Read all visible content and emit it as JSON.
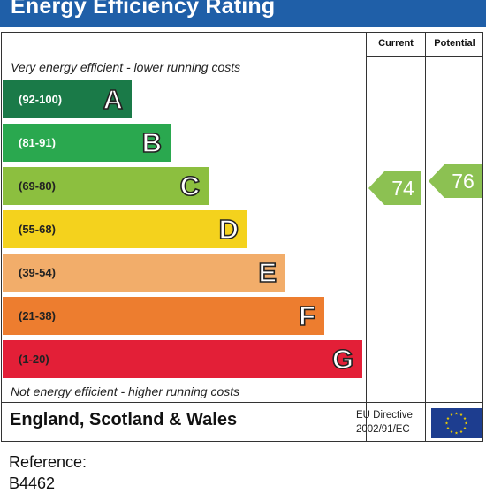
{
  "title": "Energy Efficiency Rating",
  "columns": {
    "current": "Current",
    "potential": "Potential"
  },
  "top_note": "Very energy efficient - lower running costs",
  "bottom_note": "Not energy efficient - higher running costs",
  "bands": [
    {
      "range": "(92-100)",
      "letter": "A",
      "color": "#1a7a48",
      "text_color": "#ffffff"
    },
    {
      "range": "(81-91)",
      "letter": "B",
      "color": "#2aa84f",
      "text_color": "#ffffff"
    },
    {
      "range": "(69-80)",
      "letter": "C",
      "color": "#8cbf3f",
      "text_color": "#222222"
    },
    {
      "range": "(55-68)",
      "letter": "D",
      "color": "#f4d21d",
      "text_color": "#222222"
    },
    {
      "range": "(39-54)",
      "letter": "E",
      "color": "#f2ad6a",
      "text_color": "#222222"
    },
    {
      "range": "(21-38)",
      "letter": "F",
      "color": "#ed7d2f",
      "text_color": "#222222"
    },
    {
      "range": "(1-20)",
      "letter": "G",
      "color": "#e31f37",
      "text_color": "#222222"
    }
  ],
  "current": {
    "value": "74",
    "band": "C",
    "color": "#8cc152"
  },
  "potential": {
    "value": "76",
    "band": "C",
    "color": "#8cc152"
  },
  "footer": {
    "region": "England, Scotland & Wales",
    "eu_line1": "EU Directive",
    "eu_line2": "2002/91/EC",
    "eu_flag_icon": "eu-flag-icon",
    "eu_flag_color": "#1d3d8f",
    "eu_star_color": "#f2d100"
  },
  "reference": {
    "label": "Reference:",
    "value": "B4462"
  }
}
